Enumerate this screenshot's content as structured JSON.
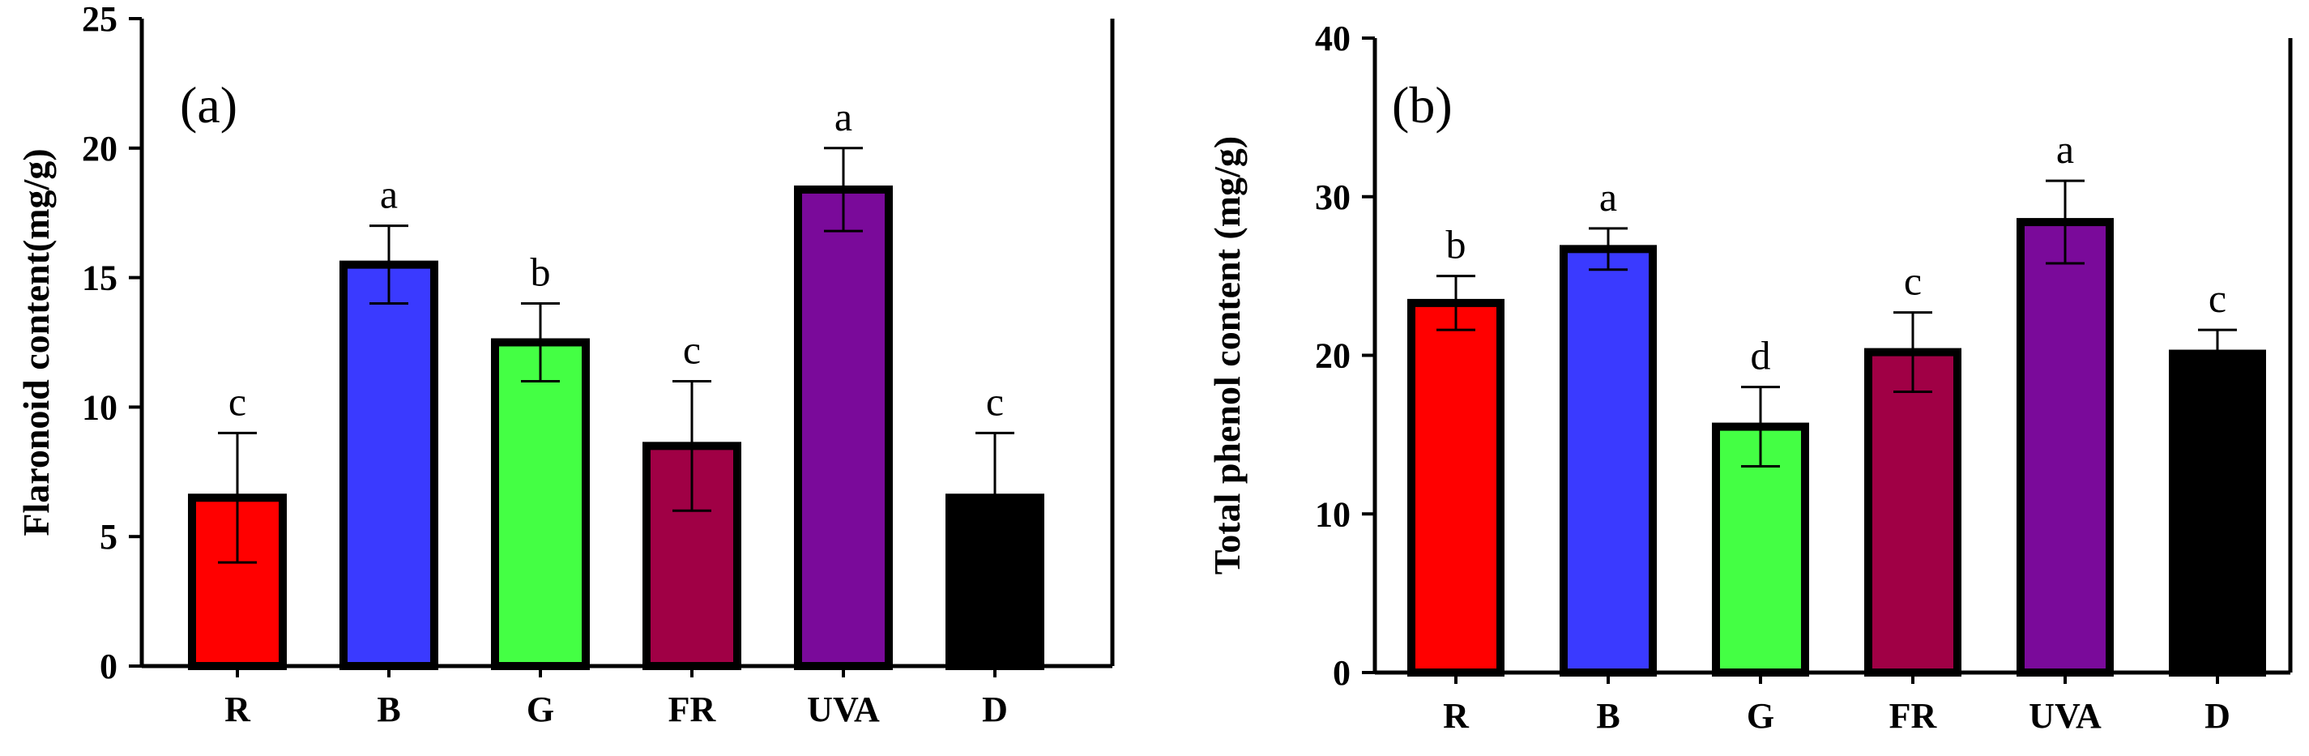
{
  "chart_data": [
    {
      "type": "bar",
      "panel_label": "(a)",
      "title": "",
      "xlabel": "",
      "ylabel": "Flaronoid content(mg/g)",
      "ylim": [
        0,
        25
      ],
      "yticks": [
        0,
        5,
        10,
        15,
        20,
        25
      ],
      "grid": false,
      "categories": [
        "R",
        "B",
        "G",
        "FR",
        "UVA",
        "D"
      ],
      "values": [
        6.5,
        15.5,
        12.5,
        8.5,
        18.4,
        6.5
      ],
      "errors": [
        2.5,
        1.5,
        1.5,
        2.5,
        1.6,
        2.5
      ],
      "significance": [
        "c",
        "a",
        "b",
        "c",
        "a",
        "c"
      ],
      "colors": [
        "#ff0000",
        "#3a3aff",
        "#44ff44",
        "#a00045",
        "#7a0a9a",
        "#000000"
      ]
    },
    {
      "type": "bar",
      "panel_label": "(b)",
      "title": "",
      "xlabel": "",
      "ylabel": "Total phenol content (mg/g)",
      "ylim": [
        0,
        40
      ],
      "yticks": [
        0,
        10,
        20,
        30,
        40
      ],
      "grid": false,
      "categories": [
        "R",
        "B",
        "G",
        "FR",
        "UVA",
        "D"
      ],
      "values": [
        23.3,
        26.7,
        15.5,
        20.2,
        28.4,
        20.1
      ],
      "errors": [
        1.7,
        1.3,
        2.5,
        2.5,
        2.6,
        1.5
      ],
      "significance": [
        "b",
        "a",
        "d",
        "c",
        "a",
        "c"
      ],
      "colors": [
        "#ff0000",
        "#3a3aff",
        "#44ff44",
        "#a00045",
        "#7a0a9a",
        "#000000"
      ]
    }
  ]
}
